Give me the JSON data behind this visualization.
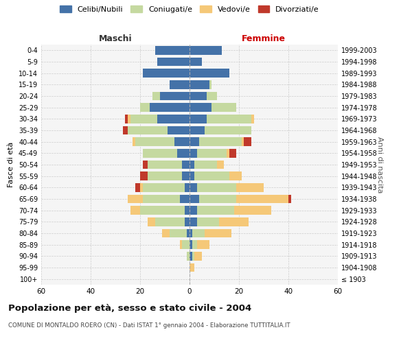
{
  "age_groups": [
    "100+",
    "95-99",
    "90-94",
    "85-89",
    "80-84",
    "75-79",
    "70-74",
    "65-69",
    "60-64",
    "55-59",
    "50-54",
    "45-49",
    "40-44",
    "35-39",
    "30-34",
    "25-29",
    "20-24",
    "15-19",
    "10-14",
    "5-9",
    "0-4"
  ],
  "birth_years": [
    "≤ 1903",
    "1904-1908",
    "1909-1913",
    "1914-1918",
    "1919-1923",
    "1924-1928",
    "1929-1933",
    "1934-1938",
    "1939-1943",
    "1944-1948",
    "1949-1953",
    "1954-1958",
    "1959-1963",
    "1964-1968",
    "1969-1973",
    "1974-1978",
    "1979-1983",
    "1984-1988",
    "1989-1993",
    "1994-1998",
    "1999-2003"
  ],
  "maschi": {
    "celibi": [
      0,
      0,
      0,
      0,
      1,
      2,
      2,
      4,
      2,
      3,
      3,
      5,
      6,
      9,
      13,
      16,
      12,
      8,
      19,
      13,
      14
    ],
    "coniugati": [
      0,
      0,
      1,
      3,
      7,
      12,
      18,
      15,
      17,
      14,
      14,
      14,
      16,
      16,
      11,
      4,
      3,
      0,
      0,
      0,
      0
    ],
    "vedovi": [
      0,
      0,
      0,
      1,
      3,
      3,
      4,
      6,
      1,
      0,
      0,
      0,
      1,
      0,
      1,
      0,
      0,
      0,
      0,
      0,
      0
    ],
    "divorziati": [
      0,
      0,
      0,
      0,
      0,
      0,
      0,
      0,
      2,
      3,
      2,
      0,
      0,
      2,
      1,
      0,
      0,
      0,
      0,
      0,
      0
    ]
  },
  "femmine": {
    "nubili": [
      0,
      0,
      1,
      1,
      1,
      3,
      3,
      4,
      3,
      2,
      2,
      3,
      4,
      6,
      7,
      9,
      7,
      8,
      16,
      5,
      13
    ],
    "coniugate": [
      0,
      0,
      1,
      2,
      5,
      9,
      15,
      15,
      16,
      14,
      9,
      12,
      17,
      19,
      18,
      10,
      4,
      1,
      0,
      0,
      0
    ],
    "vedove": [
      0,
      2,
      3,
      5,
      11,
      12,
      15,
      21,
      11,
      5,
      3,
      1,
      1,
      0,
      1,
      0,
      0,
      0,
      0,
      0,
      0
    ],
    "divorziate": [
      0,
      0,
      0,
      0,
      0,
      0,
      0,
      1,
      0,
      0,
      0,
      3,
      3,
      0,
      0,
      0,
      0,
      0,
      0,
      0,
      0
    ]
  },
  "colors": {
    "celibi": "#4472a8",
    "coniugati": "#c5d9a0",
    "vedovi": "#f5c878",
    "divorziati": "#c0392b"
  },
  "xlim": 60,
  "title": "Popolazione per età, sesso e stato civile - 2004",
  "subtitle": "COMUNE DI MONTALDO ROERO (CN) - Dati ISTAT 1° gennaio 2004 - Elaborazione TUTTITALIA.IT",
  "ylabel_left": "Fasce di età",
  "ylabel_right": "Anni di nascita",
  "xlabel_maschi": "Maschi",
  "xlabel_femmine": "Femmine",
  "legend_labels": [
    "Celibi/Nubili",
    "Coniugati/e",
    "Vedovi/e",
    "Divorziati/e"
  ],
  "background_color": "#f5f5f5",
  "grid_color": "#cccccc"
}
